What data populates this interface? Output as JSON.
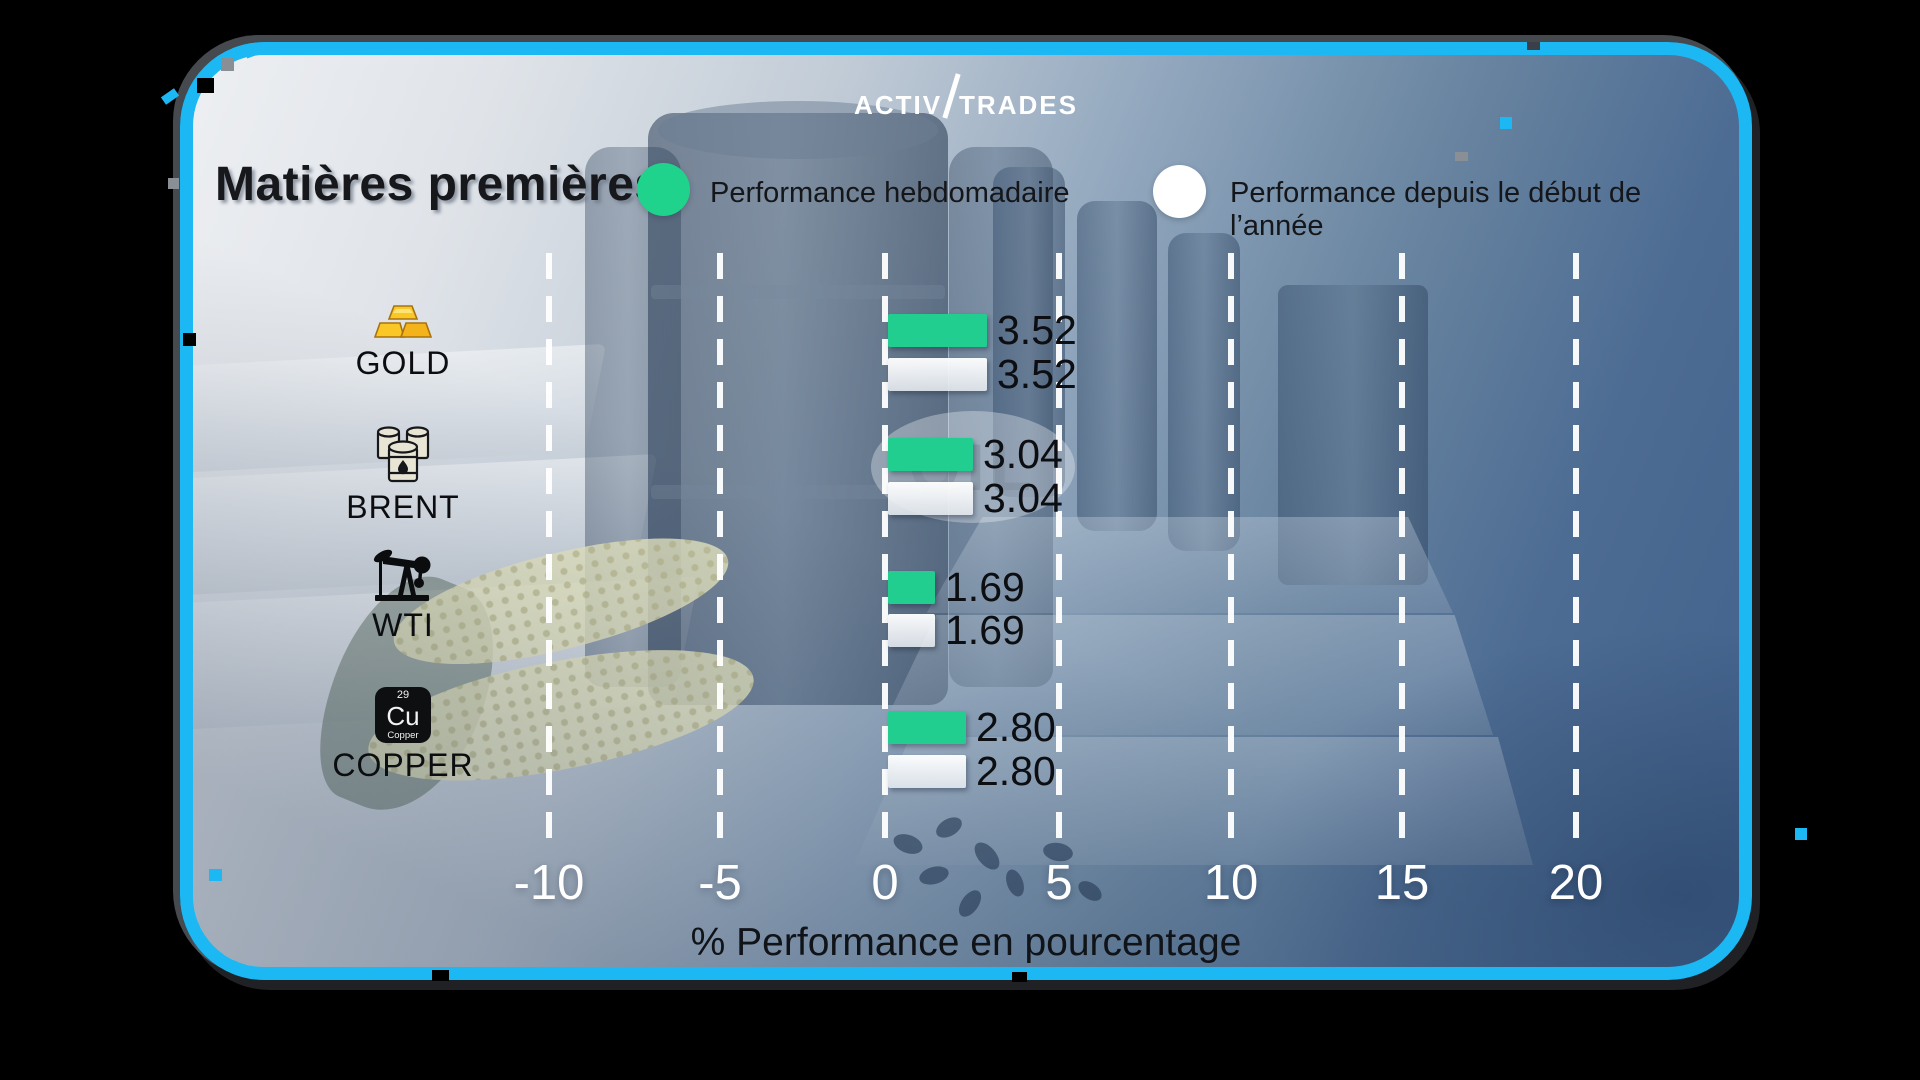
{
  "brand": {
    "name": "ActivTrades",
    "logo_left": "Activ",
    "logo_right": "Trades"
  },
  "header": {
    "title": "Matières premières"
  },
  "legend": {
    "weekly": {
      "label": "Performance hebdomadaire",
      "color": "#1fd38c"
    },
    "ytd": {
      "label": "Performance depuis le début de l’année",
      "color": "#ffffff"
    }
  },
  "background_decor": {
    "oil_watermark": "OIL"
  },
  "copper_element": {
    "atomic_number": "29",
    "symbol": "Cu",
    "name": "Copper"
  },
  "icons": {
    "gold": "gold-bars-icon",
    "brent": "oil-barrels-icon",
    "wti": "oil-pump-jack-icon",
    "copper": "copper-element-icon"
  },
  "chart_data": {
    "type": "bar",
    "orientation": "horizontal",
    "title": "Matières premières",
    "categories": [
      "GOLD",
      "BRENT",
      "WTI",
      "COPPER"
    ],
    "series": [
      {
        "name": "Performance hebdomadaire",
        "color": "#22ce8f",
        "values": [
          3.52,
          3.04,
          1.69,
          2.8
        ]
      },
      {
        "name": "Performance depuis le début de l’année",
        "color": "#eef1f4",
        "values": [
          3.52,
          3.04,
          1.69,
          2.8
        ]
      }
    ],
    "value_labels": [
      [
        "3.52",
        "3.52"
      ],
      [
        "3.04",
        "3.04"
      ],
      [
        "1.69",
        "1.69"
      ],
      [
        "2.80",
        "2.80"
      ]
    ],
    "xlabel": "% Performance en pourcentage",
    "x_ticks": [
      "-10",
      "-5",
      "0",
      "5",
      "10",
      "15",
      "20"
    ],
    "xlim": [
      -12.5,
      22.5
    ],
    "grid": {
      "axis": "x",
      "style": "dashed",
      "color": "#ffffff"
    },
    "legend_position": "top",
    "accent_border_color": "#1cb8f4"
  }
}
